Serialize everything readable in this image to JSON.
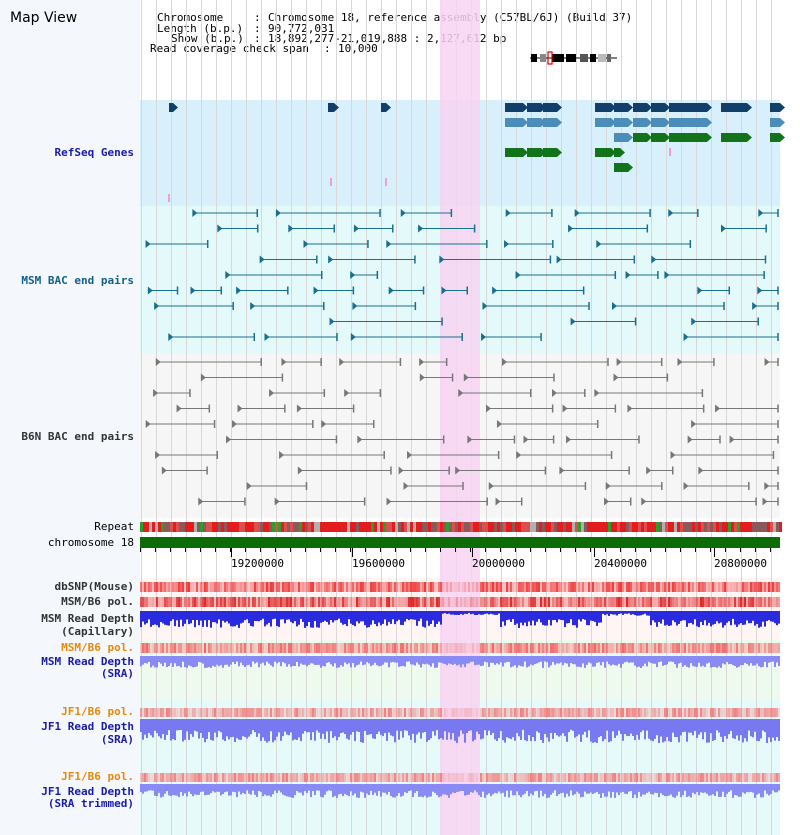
{
  "app": {
    "title": "Map View"
  },
  "header": {
    "chromosome_key": "Chromosome",
    "chromosome_value": "Chromosome 18, reference assembly (C57BL/6J) (Build 37)",
    "length_key": "Length (b.p.)",
    "length_value": "90,772,031",
    "show_key": "Show (b.p.)",
    "show_value": "18,892,277-21,019,888 : 2,127,612 bp",
    "coverage_key": "Read coverage check span",
    "coverage_value": "10,000"
  },
  "tracks": {
    "refseq": "RefSeq Genes",
    "msm_bac": "MSM BAC end pairs",
    "b6n_bac": "B6N BAC end pairs",
    "repeat": "Repeat",
    "chromosome": "chromosome 18",
    "dbsnp": "dbSNP(Mouse)",
    "msm_b6_pol": "MSM/B6 pol.",
    "msm_depth_cap_1": "MSM Read Depth",
    "msm_depth_cap_2": "(Capillary)",
    "msm_b6_pol_2": "MSM/B6 pol.",
    "msm_depth_sra_1": "MSM Read Depth",
    "msm_depth_sra_2": "(SRA)",
    "jf1_b6_pol": "JF1/B6 pol.",
    "jf1_depth_1": "JF1 Read Depth",
    "jf1_depth_2": "(SRA)",
    "jf1_b6_pol_2": "JF1/B6 pol.",
    "jf1_trim_1": "JF1 Read Depth",
    "jf1_trim_2": "(SRA trimmed)"
  },
  "axis": {
    "ticks": [
      "19200000",
      "19600000",
      "20000000",
      "20400000",
      "20800000"
    ]
  },
  "colors": {
    "refseq_bg": "#d8f0fc",
    "msm_bg": "#e4fafa",
    "b6n_bg": "#f6f6f6",
    "highlight": "#f8d4f2",
    "gene_navy": "#123f6a",
    "gene_steel": "#4c8cb8",
    "gene_green": "#13731b",
    "chromosome_bar": "#0d6b08",
    "depth_blue": "#2a2adf",
    "depth_light": "#8a8af4",
    "bac_teal": "#1a6e8e",
    "bac_gray": "#777777"
  }
}
